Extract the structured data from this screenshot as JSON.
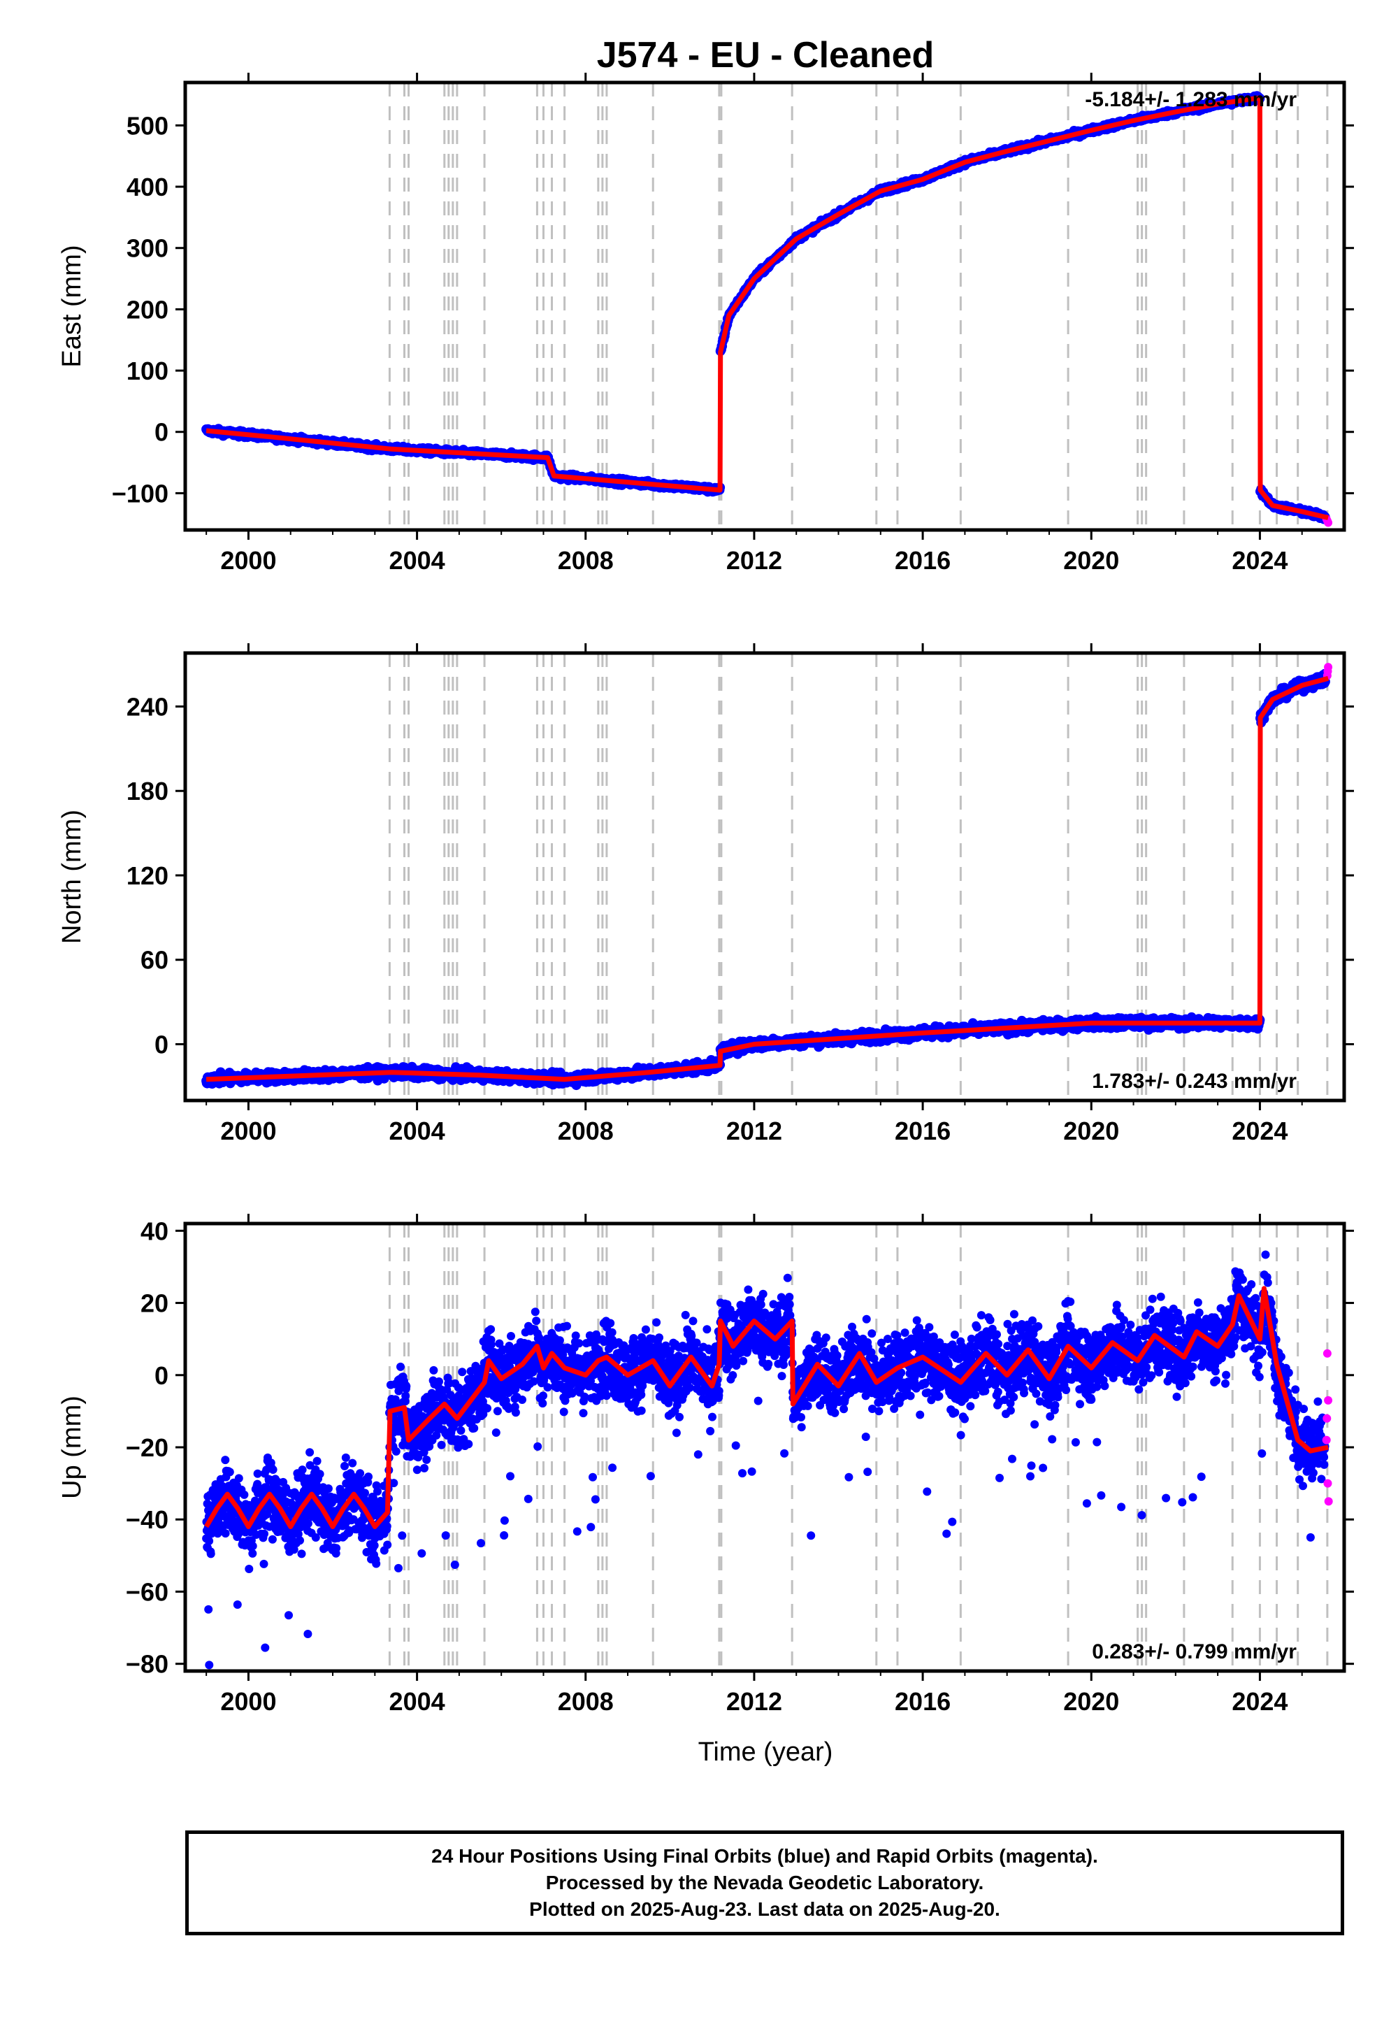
{
  "title": "J574  - EU - Cleaned",
  "xlabel": "Time (year)",
  "colors": {
    "final_orbits": "#0000ff",
    "rapid_orbits": "#ff00ff",
    "model": "#ff0000",
    "event_lines": "#c0c0c0"
  },
  "footer": {
    "line1": "24 Hour Positions Using Final Orbits (blue) and Rapid Orbits (magenta).",
    "line2": "Processed by the Nevada Geodetic Laboratory.",
    "line3": "Plotted on 2025-Aug-23. Last data on 2025-Aug-20."
  },
  "chart_data": [
    {
      "type": "scatter",
      "component": "East",
      "ylabel": "East (mm)",
      "rate_label": "-5.184+/- 1.283 mm/yr",
      "rate_label_position": "top-right",
      "xlim": [
        1998.5,
        2026.0
      ],
      "ylim": [
        -160,
        570
      ],
      "x_ticks": [
        2000,
        2004,
        2008,
        2012,
        2016,
        2020,
        2024
      ],
      "y_ticks": [
        -100,
        0,
        100,
        200,
        300,
        400,
        500
      ],
      "y_tick_labels": [
        "−100",
        "0",
        "100",
        "200",
        "300",
        "400",
        "500"
      ],
      "event_lines_x": [
        2003.35,
        2003.7,
        2003.8,
        2004.65,
        2004.75,
        2004.85,
        2004.95,
        2005.6,
        2006.85,
        2007.0,
        2007.2,
        2007.5,
        2008.3,
        2008.4,
        2008.5,
        2009.6,
        2011.17,
        2011.22,
        2012.9,
        2014.9,
        2015.4,
        2016.9,
        2019.45,
        2021.1,
        2021.2,
        2021.3,
        2022.2,
        2023.35,
        2024.0,
        2024.4,
        2024.9,
        2025.6
      ],
      "model_series": [
        [
          1999.0,
          2
        ],
        [
          2000.5,
          -8
        ],
        [
          2003.4,
          -28
        ],
        [
          2007.1,
          -42
        ],
        [
          2007.25,
          -72
        ],
        [
          2009.5,
          -85
        ],
        [
          2011.19,
          -95
        ],
        [
          2011.2,
          130
        ],
        [
          2011.4,
          190
        ],
        [
          2012.0,
          250
        ],
        [
          2013.0,
          315
        ],
        [
          2014.0,
          355
        ],
        [
          2015.0,
          393
        ],
        [
          2016.0,
          412
        ],
        [
          2017.0,
          440
        ],
        [
          2018.0,
          458
        ],
        [
          2019.0,
          475
        ],
        [
          2020.0,
          492
        ],
        [
          2021.0,
          508
        ],
        [
          2022.0,
          522
        ],
        [
          2023.0,
          535
        ],
        [
          2024.0,
          545
        ],
        [
          2024.01,
          -95
        ],
        [
          2024.3,
          -120
        ],
        [
          2025.0,
          -130
        ],
        [
          2025.62,
          -140
        ]
      ],
      "rapid_points": [
        [
          2025.58,
          -142
        ],
        [
          2025.6,
          -145
        ],
        [
          2025.62,
          -148
        ]
      ]
    },
    {
      "type": "scatter",
      "component": "North",
      "ylabel": "North (mm)",
      "rate_label": "1.783+/- 0.243 mm/yr",
      "rate_label_position": "bottom-right",
      "xlim": [
        1998.5,
        2026.0
      ],
      "ylim": [
        -40,
        278
      ],
      "x_ticks": [
        2000,
        2004,
        2008,
        2012,
        2016,
        2020,
        2024
      ],
      "y_ticks": [
        0,
        60,
        120,
        180,
        240
      ],
      "y_tick_labels": [
        "0",
        "60",
        "120",
        "180",
        "240"
      ],
      "event_lines_x": [
        2003.35,
        2003.7,
        2003.8,
        2004.65,
        2004.75,
        2004.85,
        2004.95,
        2005.6,
        2006.85,
        2007.0,
        2007.2,
        2007.5,
        2008.3,
        2008.4,
        2008.5,
        2009.6,
        2011.17,
        2011.22,
        2012.9,
        2014.9,
        2015.4,
        2016.9,
        2019.45,
        2021.1,
        2021.2,
        2021.3,
        2022.2,
        2023.35,
        2024.0,
        2024.4,
        2024.9,
        2025.6
      ],
      "model_series": [
        [
          1999.0,
          -25
        ],
        [
          2003.4,
          -20
        ],
        [
          2005.5,
          -22
        ],
        [
          2007.5,
          -25
        ],
        [
          2009.5,
          -20
        ],
        [
          2011.19,
          -15
        ],
        [
          2011.2,
          -5
        ],
        [
          2012.0,
          0
        ],
        [
          2016.0,
          8
        ],
        [
          2020.0,
          15
        ],
        [
          2024.0,
          15
        ],
        [
          2024.01,
          232
        ],
        [
          2024.3,
          245
        ],
        [
          2025.0,
          255
        ],
        [
          2025.62,
          260
        ]
      ],
      "rapid_points": [
        [
          2025.6,
          262
        ],
        [
          2025.62,
          268
        ],
        [
          2025.61,
          265
        ]
      ]
    },
    {
      "type": "scatter",
      "component": "Up",
      "ylabel": "Up (mm)",
      "rate_label": "0.283+/- 0.799 mm/yr",
      "rate_label_position": "bottom-right",
      "xlim": [
        1998.5,
        2026.0
      ],
      "ylim": [
        -82,
        42
      ],
      "x_ticks": [
        2000,
        2004,
        2008,
        2012,
        2016,
        2020,
        2024
      ],
      "y_ticks": [
        -80,
        -60,
        -40,
        -20,
        0,
        20,
        40
      ],
      "y_tick_labels": [
        "−80",
        "−60",
        "−40",
        "−20",
        "0",
        "20",
        "40"
      ],
      "event_lines_x": [
        2003.35,
        2003.7,
        2003.8,
        2004.65,
        2004.75,
        2004.85,
        2004.95,
        2005.6,
        2006.85,
        2007.0,
        2007.2,
        2007.5,
        2008.3,
        2008.4,
        2008.5,
        2009.6,
        2011.17,
        2011.22,
        2012.9,
        2014.9,
        2015.4,
        2016.9,
        2019.45,
        2021.1,
        2021.2,
        2021.3,
        2022.2,
        2023.35,
        2024.0,
        2024.4,
        2024.9,
        2025.6
      ],
      "model_series": [
        [
          1999.0,
          -42
        ],
        [
          1999.25,
          -37
        ],
        [
          1999.5,
          -33
        ],
        [
          1999.75,
          -37
        ],
        [
          2000.0,
          -42
        ],
        [
          2000.25,
          -37
        ],
        [
          2000.5,
          -33
        ],
        [
          2000.75,
          -37
        ],
        [
          2001.0,
          -42
        ],
        [
          2001.25,
          -37
        ],
        [
          2001.5,
          -33
        ],
        [
          2001.75,
          -37
        ],
        [
          2002.0,
          -42
        ],
        [
          2002.25,
          -37
        ],
        [
          2002.5,
          -33
        ],
        [
          2002.75,
          -37
        ],
        [
          2003.0,
          -42
        ],
        [
          2003.3,
          -38
        ],
        [
          2003.36,
          -10
        ],
        [
          2003.7,
          -9
        ],
        [
          2003.8,
          -18
        ],
        [
          2004.3,
          -12
        ],
        [
          2004.65,
          -8
        ],
        [
          2004.95,
          -12
        ],
        [
          2005.6,
          -2
        ],
        [
          2005.7,
          4
        ],
        [
          2006.0,
          -1
        ],
        [
          2006.5,
          3
        ],
        [
          2006.85,
          8
        ],
        [
          2007.0,
          2
        ],
        [
          2007.2,
          6
        ],
        [
          2007.5,
          2
        ],
        [
          2008.0,
          0
        ],
        [
          2008.3,
          4
        ],
        [
          2008.5,
          5
        ],
        [
          2009.0,
          0
        ],
        [
          2009.6,
          4
        ],
        [
          2010.0,
          -3
        ],
        [
          2010.5,
          5
        ],
        [
          2011.0,
          -3
        ],
        [
          2011.17,
          3
        ],
        [
          2011.2,
          15
        ],
        [
          2011.5,
          8
        ],
        [
          2012.0,
          15
        ],
        [
          2012.5,
          10
        ],
        [
          2012.9,
          15
        ],
        [
          2012.92,
          -8
        ],
        [
          2013.5,
          3
        ],
        [
          2014.0,
          -3
        ],
        [
          2014.5,
          6
        ],
        [
          2014.9,
          -2
        ],
        [
          2015.4,
          2
        ],
        [
          2016.0,
          5
        ],
        [
          2016.9,
          -2
        ],
        [
          2017.5,
          6
        ],
        [
          2018.0,
          0
        ],
        [
          2018.5,
          7
        ],
        [
          2019.0,
          -1
        ],
        [
          2019.45,
          8
        ],
        [
          2020.0,
          2
        ],
        [
          2020.5,
          9
        ],
        [
          2021.1,
          4
        ],
        [
          2021.5,
          11
        ],
        [
          2022.2,
          5
        ],
        [
          2022.5,
          12
        ],
        [
          2023.0,
          8
        ],
        [
          2023.35,
          14
        ],
        [
          2023.5,
          22
        ],
        [
          2024.0,
          10
        ],
        [
          2024.1,
          24
        ],
        [
          2024.4,
          3
        ],
        [
          2024.9,
          -18
        ],
        [
          2025.2,
          -21
        ],
        [
          2025.62,
          -20
        ]
      ],
      "rapid_points": [
        [
          2025.6,
          6
        ],
        [
          2025.62,
          -7
        ],
        [
          2025.58,
          -18
        ],
        [
          2025.61,
          -30
        ],
        [
          2025.63,
          -35
        ],
        [
          2025.59,
          -12
        ]
      ]
    }
  ]
}
